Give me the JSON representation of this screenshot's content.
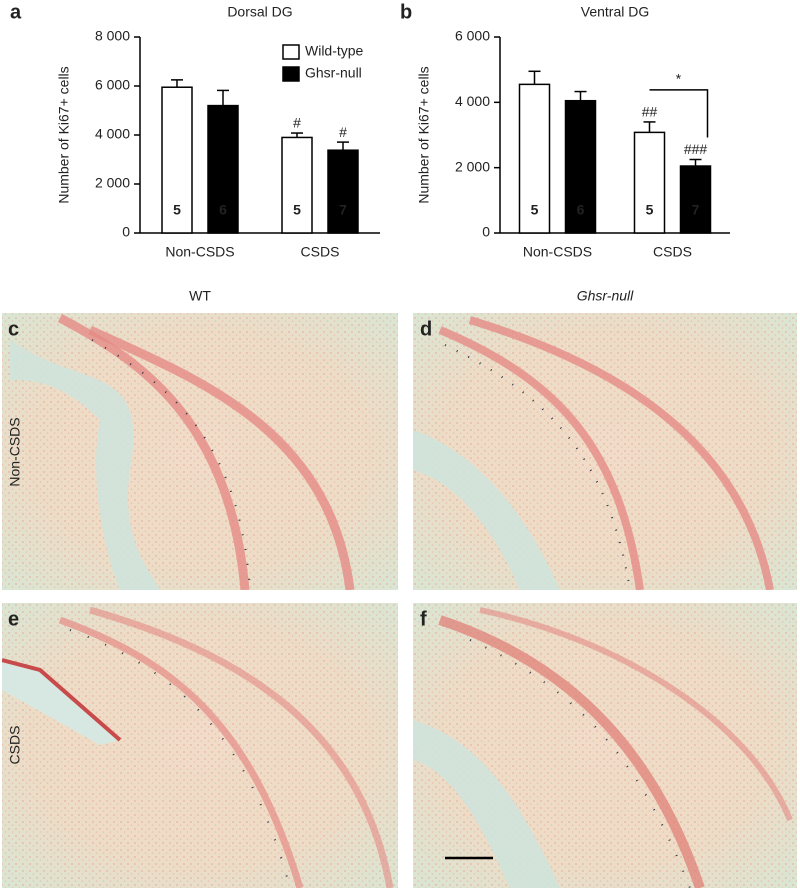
{
  "chart_data": [
    {
      "type": "bar",
      "panel": "a",
      "title": "Dorsal DG",
      "ylabel": "Number of Ki67+ cells",
      "categories": [
        "Non-CSDS",
        "CSDS"
      ],
      "series": [
        {
          "name": "Wild-type",
          "color": "#ffffff",
          "values": [
            5950,
            3900
          ],
          "errors": [
            300,
            180
          ],
          "n": [
            5,
            5
          ],
          "annotations": [
            null,
            "#"
          ]
        },
        {
          "name": "Ghsr-null",
          "color": "#000000",
          "values": [
            5200,
            3380
          ],
          "errors": [
            620,
            330
          ],
          "n": [
            6,
            7
          ],
          "annotations": [
            null,
            "#"
          ]
        }
      ],
      "ylim": [
        0,
        8000
      ],
      "yticks": [
        0,
        {
          "value": 2000,
          "label": "2 000"
        },
        {
          "value": 4000,
          "label": "4 000"
        },
        {
          "value": 6000,
          "label": "6 000"
        },
        {
          "value": 8000,
          "label": "8 000"
        }
      ],
      "legend": "upper right"
    },
    {
      "type": "bar",
      "panel": "b",
      "title": "Ventral DG",
      "ylabel": "Number of Ki67+ cells",
      "categories": [
        "Non-CSDS",
        "CSDS"
      ],
      "series": [
        {
          "name": "Wild-type",
          "color": "#ffffff",
          "values": [
            4550,
            3080
          ],
          "errors": [
            400,
            320
          ],
          "n": [
            5,
            5
          ],
          "annotations": [
            null,
            "##"
          ]
        },
        {
          "name": "Ghsr-null",
          "color": "#000000",
          "values": [
            4050,
            2050
          ],
          "errors": [
            280,
            200
          ],
          "n": [
            6,
            7
          ],
          "annotations": [
            null,
            "###"
          ]
        }
      ],
      "ylim": [
        0,
        6000
      ],
      "yticks": [
        0,
        {
          "value": 2000,
          "label": "2 000"
        },
        {
          "value": 4000,
          "label": "4 000"
        },
        {
          "value": 6000,
          "label": "6 000"
        }
      ],
      "comparison": "*"
    }
  ],
  "micrographs": {
    "columns": [
      "WT",
      "Ghsr-null"
    ],
    "rows": [
      "Non-CSDS",
      "CSDS"
    ],
    "panels": [
      "c",
      "d",
      "e",
      "f"
    ]
  }
}
